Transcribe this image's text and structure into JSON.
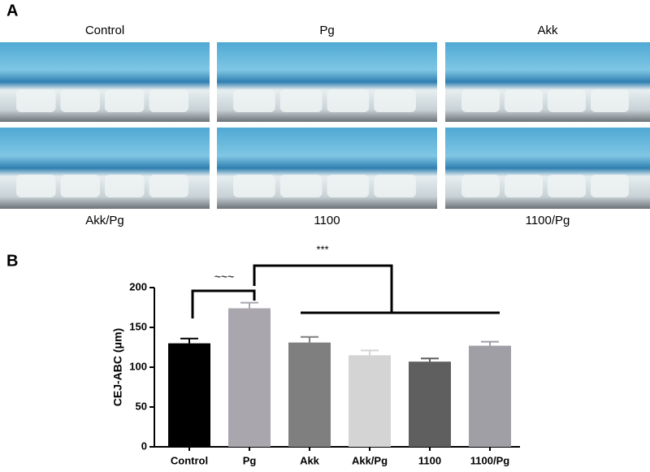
{
  "panel_a": {
    "label": "A",
    "images": [
      {
        "label": "Control"
      },
      {
        "label": "Pg"
      },
      {
        "label": "Akk"
      },
      {
        "label": "Akk/Pg"
      },
      {
        "label": "1100"
      },
      {
        "label": "1100/Pg"
      }
    ]
  },
  "chart_data": {
    "type": "bar",
    "panel_label": "B",
    "y_label": "CEJ-ABC (μm)",
    "categories": [
      "Control",
      "Pg",
      "Akk",
      "Akk/Pg",
      "1100",
      "1100/Pg"
    ],
    "values": [
      130,
      174,
      131,
      115,
      107,
      127
    ],
    "errors": [
      6,
      7,
      7,
      6,
      4,
      5
    ],
    "colors": [
      "#000000",
      "#a9a6ae",
      "#7f7f7f",
      "#d4d4d4",
      "#5f5f5f",
      "#a09fa6"
    ],
    "ylim": [
      0,
      200
    ],
    "yticks": [
      0,
      50,
      100,
      150,
      200
    ],
    "annotations": [
      "~~~",
      "***"
    ]
  }
}
